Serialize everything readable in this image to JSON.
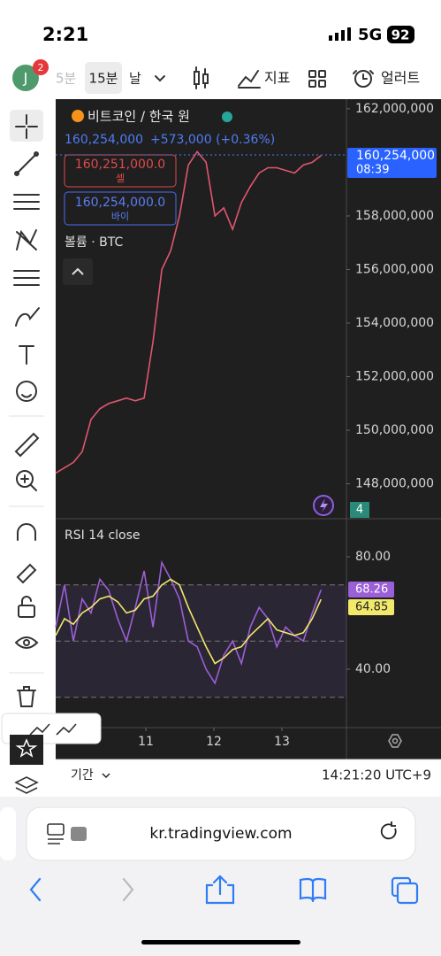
{
  "status_bar": {
    "time": "2:21",
    "network": "5G",
    "battery": "92"
  },
  "toolbar": {
    "avatar": "J",
    "badge": "2",
    "intervals": [
      "5분",
      "15분",
      "날"
    ],
    "indicators": "지표",
    "alerts": "얼러트"
  },
  "chart_data": [
    {
      "type": "line",
      "title": "비트코인 / 한국 원",
      "quote": "160,254,000",
      "change": "+573,000 (+0.36%)",
      "sell_price": "160,251,000.0",
      "sell_label": "셀",
      "buy_price": "160,254,000.0",
      "buy_label": "바이",
      "volume_label": "볼륨 · BTC",
      "last_price_label": "160,254,000",
      "countdown": "08:39",
      "volume_badge": "4",
      "x": [
        9.675,
        9.805,
        9.935,
        10.065,
        10.195,
        10.325,
        10.455,
        10.585,
        10.715,
        10.845,
        10.975,
        11.105,
        11.235,
        11.365,
        11.495,
        11.625,
        11.755,
        11.885,
        12.015,
        12.145,
        12.275,
        12.405,
        12.535,
        12.665,
        12.795,
        12.925,
        13.055,
        13.185,
        13.315,
        13.445,
        13.575
      ],
      "values": [
        148400000,
        148600000,
        148800000,
        149200000,
        150400000,
        150800000,
        151000000,
        151100000,
        151200000,
        151100000,
        151200000,
        153300000,
        156000000,
        156700000,
        158000000,
        159900000,
        160400000,
        160000000,
        158000000,
        158300000,
        157500000,
        158500000,
        159100000,
        159600000,
        159800000,
        159800000,
        159700000,
        159600000,
        159900000,
        160000000,
        160254000
      ],
      "color": "#e0566f",
      "xlim": [
        9.675,
        13.948
      ],
      "ylim": [
        146730000,
        162360000
      ],
      "yticks": [
        {
          "value": 162000000,
          "label": "162,000,000"
        },
        {
          "value": 158000000,
          "label": "158,000,000"
        },
        {
          "value": 156000000,
          "label": "156,000,000"
        },
        {
          "value": 154000000,
          "label": "154,000,000"
        },
        {
          "value": 152000000,
          "label": "152,000,000"
        },
        {
          "value": 150000000,
          "label": "150,000,000"
        },
        {
          "value": 148000000,
          "label": "148,000,000"
        }
      ]
    },
    {
      "type": "line",
      "title": "RSI 14 close",
      "x": [
        9.675,
        9.805,
        9.935,
        10.065,
        10.195,
        10.325,
        10.455,
        10.585,
        10.715,
        10.845,
        10.975,
        11.105,
        11.235,
        11.365,
        11.495,
        11.625,
        11.755,
        11.885,
        12.015,
        12.145,
        12.275,
        12.405,
        12.535,
        12.665,
        12.795,
        12.925,
        13.055,
        13.185,
        13.315,
        13.445,
        13.575
      ],
      "series": [
        {
          "color": "#9b5fd6",
          "values": [
            55,
            70,
            50,
            65,
            60,
            72,
            68,
            58,
            50,
            62,
            75,
            55,
            78,
            72,
            65,
            50,
            48,
            40,
            35,
            45,
            50,
            42,
            55,
            62,
            58,
            48,
            55,
            52,
            50,
            60,
            68.26
          ]
        },
        {
          "color": "#f2e86b",
          "values": [
            52,
            58,
            56,
            60,
            62,
            65,
            66,
            64,
            60,
            61,
            65,
            66,
            70,
            72,
            70,
            62,
            55,
            48,
            42,
            44,
            47,
            48,
            52,
            55,
            58,
            54,
            53,
            52,
            53,
            58,
            64.85
          ]
        }
      ],
      "bands": [
        70,
        50,
        30
      ],
      "xlim": [
        9.675,
        13.948
      ],
      "xticks": [
        11,
        12,
        13
      ],
      "ylim": [
        19.2,
        92.3
      ],
      "yticks": [
        {
          "value": 80,
          "label": "80.00"
        },
        {
          "value": 40,
          "label": "40.00"
        }
      ]
    }
  ],
  "footer": {
    "range": "기간",
    "clock": "14:21:20 UTC+9"
  },
  "browser": {
    "url": "kr.tradingview.com"
  }
}
